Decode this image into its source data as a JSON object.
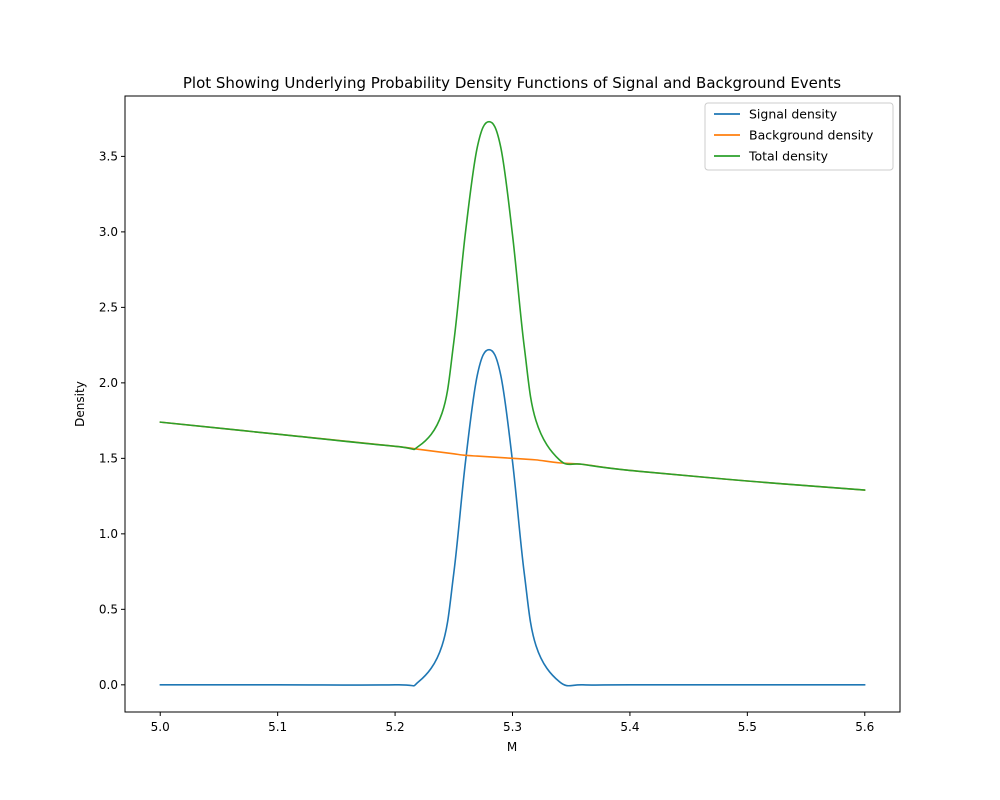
{
  "chart_data": {
    "type": "line",
    "title": "Plot Showing Underlying Probability Density Functions of Signal and Background Events",
    "xlabel": "M",
    "ylabel": "Density",
    "xlim": [
      4.97,
      5.63
    ],
    "ylim": [
      -0.18,
      3.9
    ],
    "x_ticks": [
      "5.0",
      "5.1",
      "5.2",
      "5.3",
      "5.4",
      "5.5",
      "5.6"
    ],
    "y_ticks": [
      "0.0",
      "0.5",
      "1.0",
      "1.5",
      "2.0",
      "2.5",
      "3.0",
      "3.5"
    ],
    "grid": false,
    "legend_position": "top-right",
    "x": [
      5.0,
      5.1,
      5.2,
      5.22,
      5.24,
      5.25,
      5.26,
      5.27,
      5.28,
      5.29,
      5.3,
      5.31,
      5.32,
      5.34,
      5.36,
      5.4,
      5.5,
      5.6
    ],
    "series": [
      {
        "name": "Signal density",
        "color": "#1f77b4",
        "values": [
          0.0,
          0.0,
          0.0,
          0.02,
          0.26,
          0.74,
          1.48,
          2.05,
          2.22,
          2.05,
          1.48,
          0.74,
          0.26,
          0.02,
          0.0,
          0.0,
          0.0,
          0.0
        ]
      },
      {
        "name": "Background density",
        "color": "#ff7f0e",
        "values": [
          1.74,
          1.66,
          1.58,
          1.56,
          1.54,
          1.53,
          1.52,
          1.515,
          1.51,
          1.505,
          1.5,
          1.495,
          1.49,
          1.47,
          1.46,
          1.42,
          1.35,
          1.29
        ]
      },
      {
        "name": "Total density",
        "color": "#2ca02c",
        "values": [
          1.74,
          1.66,
          1.58,
          1.58,
          1.8,
          2.27,
          3.0,
          3.56,
          3.73,
          3.56,
          2.98,
          2.24,
          1.75,
          1.49,
          1.46,
          1.42,
          1.35,
          1.29
        ]
      }
    ]
  }
}
